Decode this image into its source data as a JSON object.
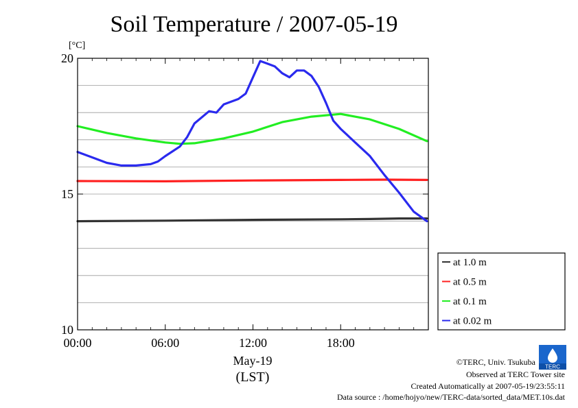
{
  "page": {
    "title": "Soil Temperature / 2007-05-19",
    "unit_label": "[°C]",
    "date_label": "May-19",
    "tz_label": "(LST)",
    "credits": [
      "©TERC, Univ. Tsukuba",
      "Observed at TERC Tower site",
      "Created Automatically at 2007-05-19/23:55:11",
      "Data source : /home/hojyo/new/TERC-data/sorted_data/MET.10s.dat"
    ],
    "logo_text": "TERC"
  },
  "chart_data": {
    "type": "line",
    "title": "Soil Temperature / 2007-05-19",
    "xlabel": "May-19 (LST)",
    "ylabel": "[°C]",
    "xlim": [
      0,
      24
    ],
    "ylim": [
      10,
      20
    ],
    "x_ticks": [
      0,
      6,
      12,
      18
    ],
    "x_tick_labels": [
      "00:00",
      "06:00",
      "12:00",
      "18:00"
    ],
    "y_ticks": [
      10,
      15,
      20
    ],
    "y_tick_labels": [
      "10",
      "15",
      "20"
    ],
    "grid": true,
    "legend_position": "right, below plot",
    "series": [
      {
        "name": "at 1.0 m",
        "color": "#333333",
        "x": [
          0,
          6,
          12,
          18,
          20,
          22,
          23.9
        ],
        "y": [
          14.0,
          14.02,
          14.05,
          14.07,
          14.08,
          14.1,
          14.1
        ]
      },
      {
        "name": "at 0.5 m",
        "color": "#ff2020",
        "x": [
          0,
          6,
          12,
          18,
          21,
          23.9
        ],
        "y": [
          15.48,
          15.47,
          15.5,
          15.52,
          15.53,
          15.52
        ]
      },
      {
        "name": "at 0.1 m",
        "color": "#22ee22",
        "x": [
          0,
          2,
          4,
          6,
          7,
          8,
          10,
          12,
          14,
          16,
          18,
          20,
          22,
          23.9
        ],
        "y": [
          17.5,
          17.25,
          17.05,
          16.9,
          16.85,
          16.87,
          17.05,
          17.3,
          17.65,
          17.85,
          17.95,
          17.75,
          17.4,
          16.95
        ]
      },
      {
        "name": "at 0.02 m",
        "color": "#2a2aee",
        "x": [
          0,
          1,
          2,
          3,
          4,
          5,
          5.5,
          6,
          7,
          7.5,
          8,
          9,
          9.5,
          10,
          11,
          11.5,
          12,
          12.5,
          13,
          13.5,
          14,
          14.5,
          15,
          15.5,
          16,
          16.5,
          17,
          17.5,
          18,
          19,
          20,
          21,
          22,
          23,
          23.9
        ],
        "y": [
          16.55,
          16.35,
          16.15,
          16.05,
          16.05,
          16.1,
          16.2,
          16.4,
          16.75,
          17.1,
          17.6,
          18.05,
          18.0,
          18.3,
          18.5,
          18.7,
          19.3,
          19.9,
          19.8,
          19.7,
          19.45,
          19.3,
          19.55,
          19.55,
          19.35,
          18.95,
          18.35,
          17.7,
          17.4,
          16.9,
          16.4,
          15.7,
          15.05,
          14.35,
          14.0
        ]
      }
    ]
  }
}
